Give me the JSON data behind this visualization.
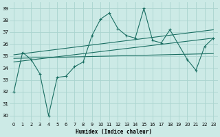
{
  "title": "",
  "xlabel": "Humidex (Indice chaleur)",
  "background_color": "#cceae6",
  "grid_color": "#aad4cf",
  "line_color": "#1a6e62",
  "xlim": [
    -0.5,
    23.5
  ],
  "ylim": [
    29.5,
    39.5
  ],
  "yticks": [
    30,
    31,
    32,
    33,
    34,
    35,
    36,
    37,
    38,
    39
  ],
  "xticks": [
    0,
    1,
    2,
    3,
    4,
    5,
    6,
    7,
    8,
    9,
    10,
    11,
    12,
    13,
    14,
    15,
    16,
    17,
    18,
    19,
    20,
    21,
    22,
    23
  ],
  "series": {
    "line_main": {
      "x": [
        0,
        1,
        2,
        3,
        4,
        5,
        6,
        7,
        8,
        9,
        10,
        11,
        12,
        13,
        14,
        15,
        16,
        17,
        18,
        20,
        21,
        22,
        23
      ],
      "y": [
        32.0,
        35.3,
        34.7,
        33.5,
        30.0,
        33.2,
        33.3,
        34.1,
        34.5,
        36.7,
        38.1,
        38.6,
        37.3,
        36.7,
        36.5,
        39.0,
        36.3,
        36.1,
        37.2,
        34.7,
        33.8,
        35.8,
        36.5
      ]
    },
    "line_upper": {
      "x": [
        0,
        23
      ],
      "y": [
        35.1,
        37.2
      ]
    },
    "line_middle": {
      "x": [
        0,
        23
      ],
      "y": [
        34.8,
        35.2
      ]
    },
    "line_lower": {
      "x": [
        0,
        23
      ],
      "y": [
        34.5,
        36.5
      ]
    }
  }
}
